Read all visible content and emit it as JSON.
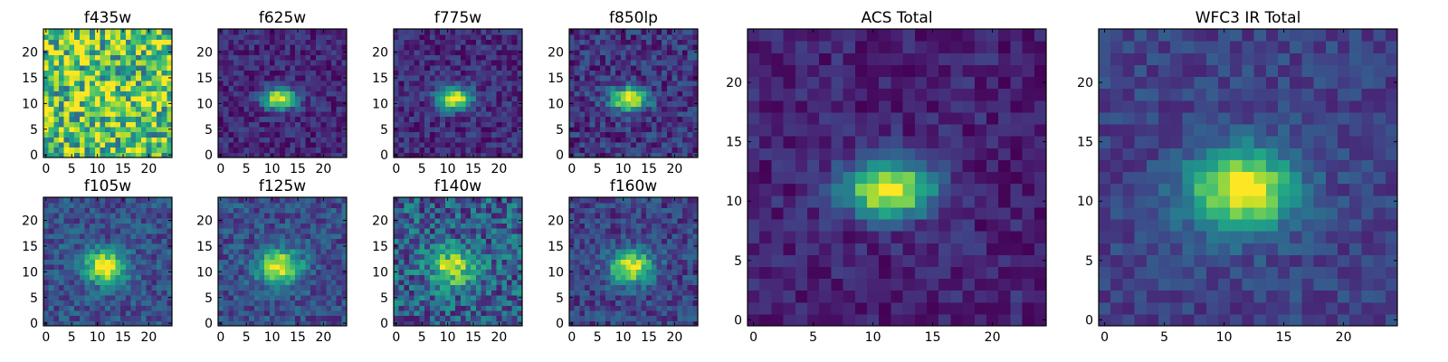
{
  "figure": {
    "background": "#ffffff",
    "colormap": "viridis"
  },
  "chart_data": [
    {
      "type": "heatmap",
      "title": "f435w",
      "grid": false,
      "x_ticks": [
        0,
        5,
        10,
        15,
        20
      ],
      "y_ticks": [
        0,
        5,
        10,
        15,
        20
      ],
      "xlim": [
        0,
        24
      ],
      "ylim": [
        0,
        24
      ],
      "source": {
        "cx": 11.5,
        "cy": 11,
        "sx": 3.5,
        "sy": 2.3,
        "amp": 0.12,
        "base": 0.72,
        "noise": 0.38,
        "seed": 11
      }
    },
    {
      "type": "heatmap",
      "title": "f625w",
      "grid": false,
      "x_ticks": [
        0,
        5,
        10,
        15,
        20
      ],
      "y_ticks": [
        0,
        5,
        10,
        15,
        20
      ],
      "xlim": [
        0,
        24
      ],
      "ylim": [
        0,
        24
      ],
      "source": {
        "cx": 11.5,
        "cy": 11,
        "sx": 2.3,
        "sy": 1.4,
        "amp": 0.9,
        "base": 0.12,
        "noise": 0.12,
        "seed": 23
      }
    },
    {
      "type": "heatmap",
      "title": "f775w",
      "grid": false,
      "x_ticks": [
        0,
        5,
        10,
        15,
        20
      ],
      "y_ticks": [
        0,
        5,
        10,
        15,
        20
      ],
      "xlim": [
        0,
        24
      ],
      "ylim": [
        0,
        24
      ],
      "source": {
        "cx": 11.3,
        "cy": 11,
        "sx": 2.4,
        "sy": 1.5,
        "amp": 0.88,
        "base": 0.13,
        "noise": 0.13,
        "seed": 37
      }
    },
    {
      "type": "heatmap",
      "title": "f850lp",
      "grid": false,
      "x_ticks": [
        0,
        5,
        10,
        15,
        20
      ],
      "y_ticks": [
        0,
        5,
        10,
        15,
        20
      ],
      "xlim": [
        0,
        24
      ],
      "ylim": [
        0,
        24
      ],
      "source": {
        "cx": 11.2,
        "cy": 11,
        "sx": 2.5,
        "sy": 1.6,
        "amp": 0.85,
        "base": 0.16,
        "noise": 0.16,
        "seed": 41
      }
    },
    {
      "type": "heatmap",
      "title": "ACS Total",
      "grid": false,
      "x_ticks": [
        0,
        5,
        10,
        15,
        20
      ],
      "y_ticks": [
        0,
        5,
        10,
        15,
        20
      ],
      "xlim": [
        0,
        24
      ],
      "ylim": [
        0,
        24
      ],
      "source": {
        "cx": 11.3,
        "cy": 11,
        "sx": 2.6,
        "sy": 1.6,
        "amp": 0.92,
        "base": 0.1,
        "noise": 0.1,
        "seed": 53
      }
    },
    {
      "type": "heatmap",
      "title": "WFC3 IR Total",
      "grid": false,
      "x_ticks": [
        0,
        5,
        10,
        15,
        20
      ],
      "y_ticks": [
        0,
        5,
        10,
        15,
        20
      ],
      "xlim": [
        0,
        24
      ],
      "ylim": [
        0,
        24
      ],
      "source": {
        "cx": 11.5,
        "cy": 11,
        "sx": 3.1,
        "sy": 2.4,
        "amp": 0.82,
        "base": 0.2,
        "noise": 0.1,
        "seed": 67
      }
    },
    {
      "type": "heatmap",
      "title": "f105w",
      "grid": false,
      "x_ticks": [
        0,
        5,
        10,
        15,
        20
      ],
      "y_ticks": [
        0,
        5,
        10,
        15,
        20
      ],
      "xlim": [
        0,
        24
      ],
      "ylim": [
        0,
        24
      ],
      "source": {
        "cx": 11.5,
        "cy": 11,
        "sx": 2.8,
        "sy": 2.2,
        "amp": 0.8,
        "base": 0.25,
        "noise": 0.15,
        "seed": 71
      }
    },
    {
      "type": "heatmap",
      "title": "f125w",
      "grid": false,
      "x_ticks": [
        0,
        5,
        10,
        15,
        20
      ],
      "y_ticks": [
        0,
        5,
        10,
        15,
        20
      ],
      "xlim": [
        0,
        24
      ],
      "ylim": [
        0,
        24
      ],
      "source": {
        "cx": 11.5,
        "cy": 11,
        "sx": 2.9,
        "sy": 2.3,
        "amp": 0.78,
        "base": 0.24,
        "noise": 0.15,
        "seed": 83
      }
    },
    {
      "type": "heatmap",
      "title": "f140w",
      "grid": false,
      "x_ticks": [
        0,
        5,
        10,
        15,
        20
      ],
      "y_ticks": [
        0,
        5,
        10,
        15,
        20
      ],
      "xlim": [
        0,
        24
      ],
      "ylim": [
        0,
        24
      ],
      "source": {
        "cx": 11,
        "cy": 11,
        "sx": 3.0,
        "sy": 2.4,
        "amp": 0.62,
        "base": 0.3,
        "noise": 0.24,
        "seed": 97
      }
    },
    {
      "type": "heatmap",
      "title": "f160w",
      "grid": false,
      "x_ticks": [
        0,
        5,
        10,
        15,
        20
      ],
      "y_ticks": [
        0,
        5,
        10,
        15,
        20
      ],
      "xlim": [
        0,
        24
      ],
      "ylim": [
        0,
        24
      ],
      "source": {
        "cx": 11.5,
        "cy": 11,
        "sx": 2.9,
        "sy": 2.3,
        "amp": 0.78,
        "base": 0.2,
        "noise": 0.15,
        "seed": 103
      }
    }
  ]
}
